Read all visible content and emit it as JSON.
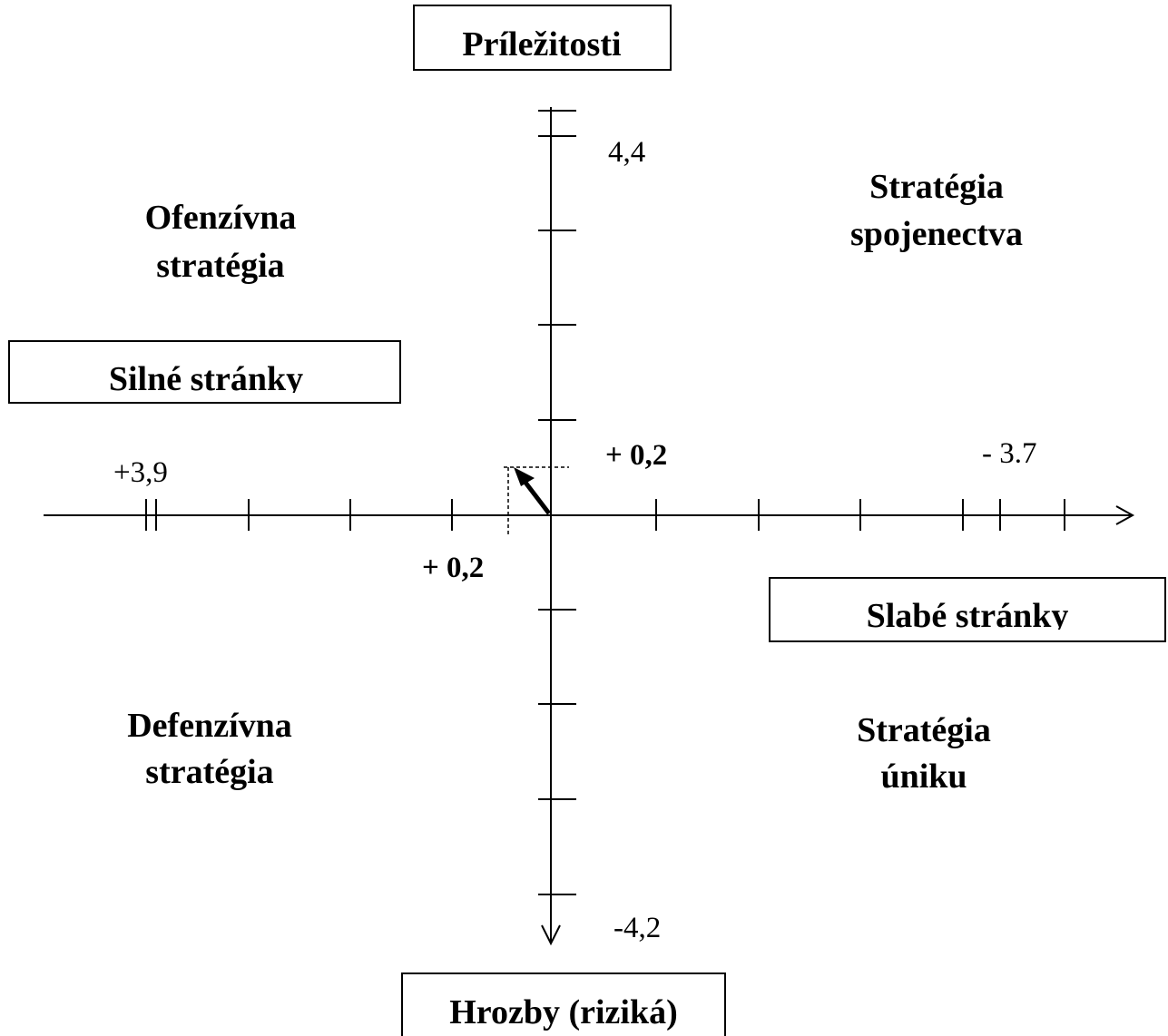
{
  "boxes": {
    "top": "Príležitosti",
    "left": "Silné stránky",
    "right": "Slabé stránky",
    "bottom": "Hrozby (riziká)"
  },
  "quadrants": {
    "top_left": [
      "Ofenzívna",
      "stratégia"
    ],
    "top_right": [
      "Stratégia",
      "spojenectva"
    ],
    "bottom_left": [
      "Defenzívna",
      "stratégia"
    ],
    "bottom_right": [
      "Stratégia",
      "úniku"
    ]
  },
  "axis_labels": {
    "top": "4,4",
    "left": "+3,9",
    "right": "- 3.7",
    "bottom": "-4,2",
    "point_y": "+ 0,2",
    "point_x": "+ 0,2"
  }
}
